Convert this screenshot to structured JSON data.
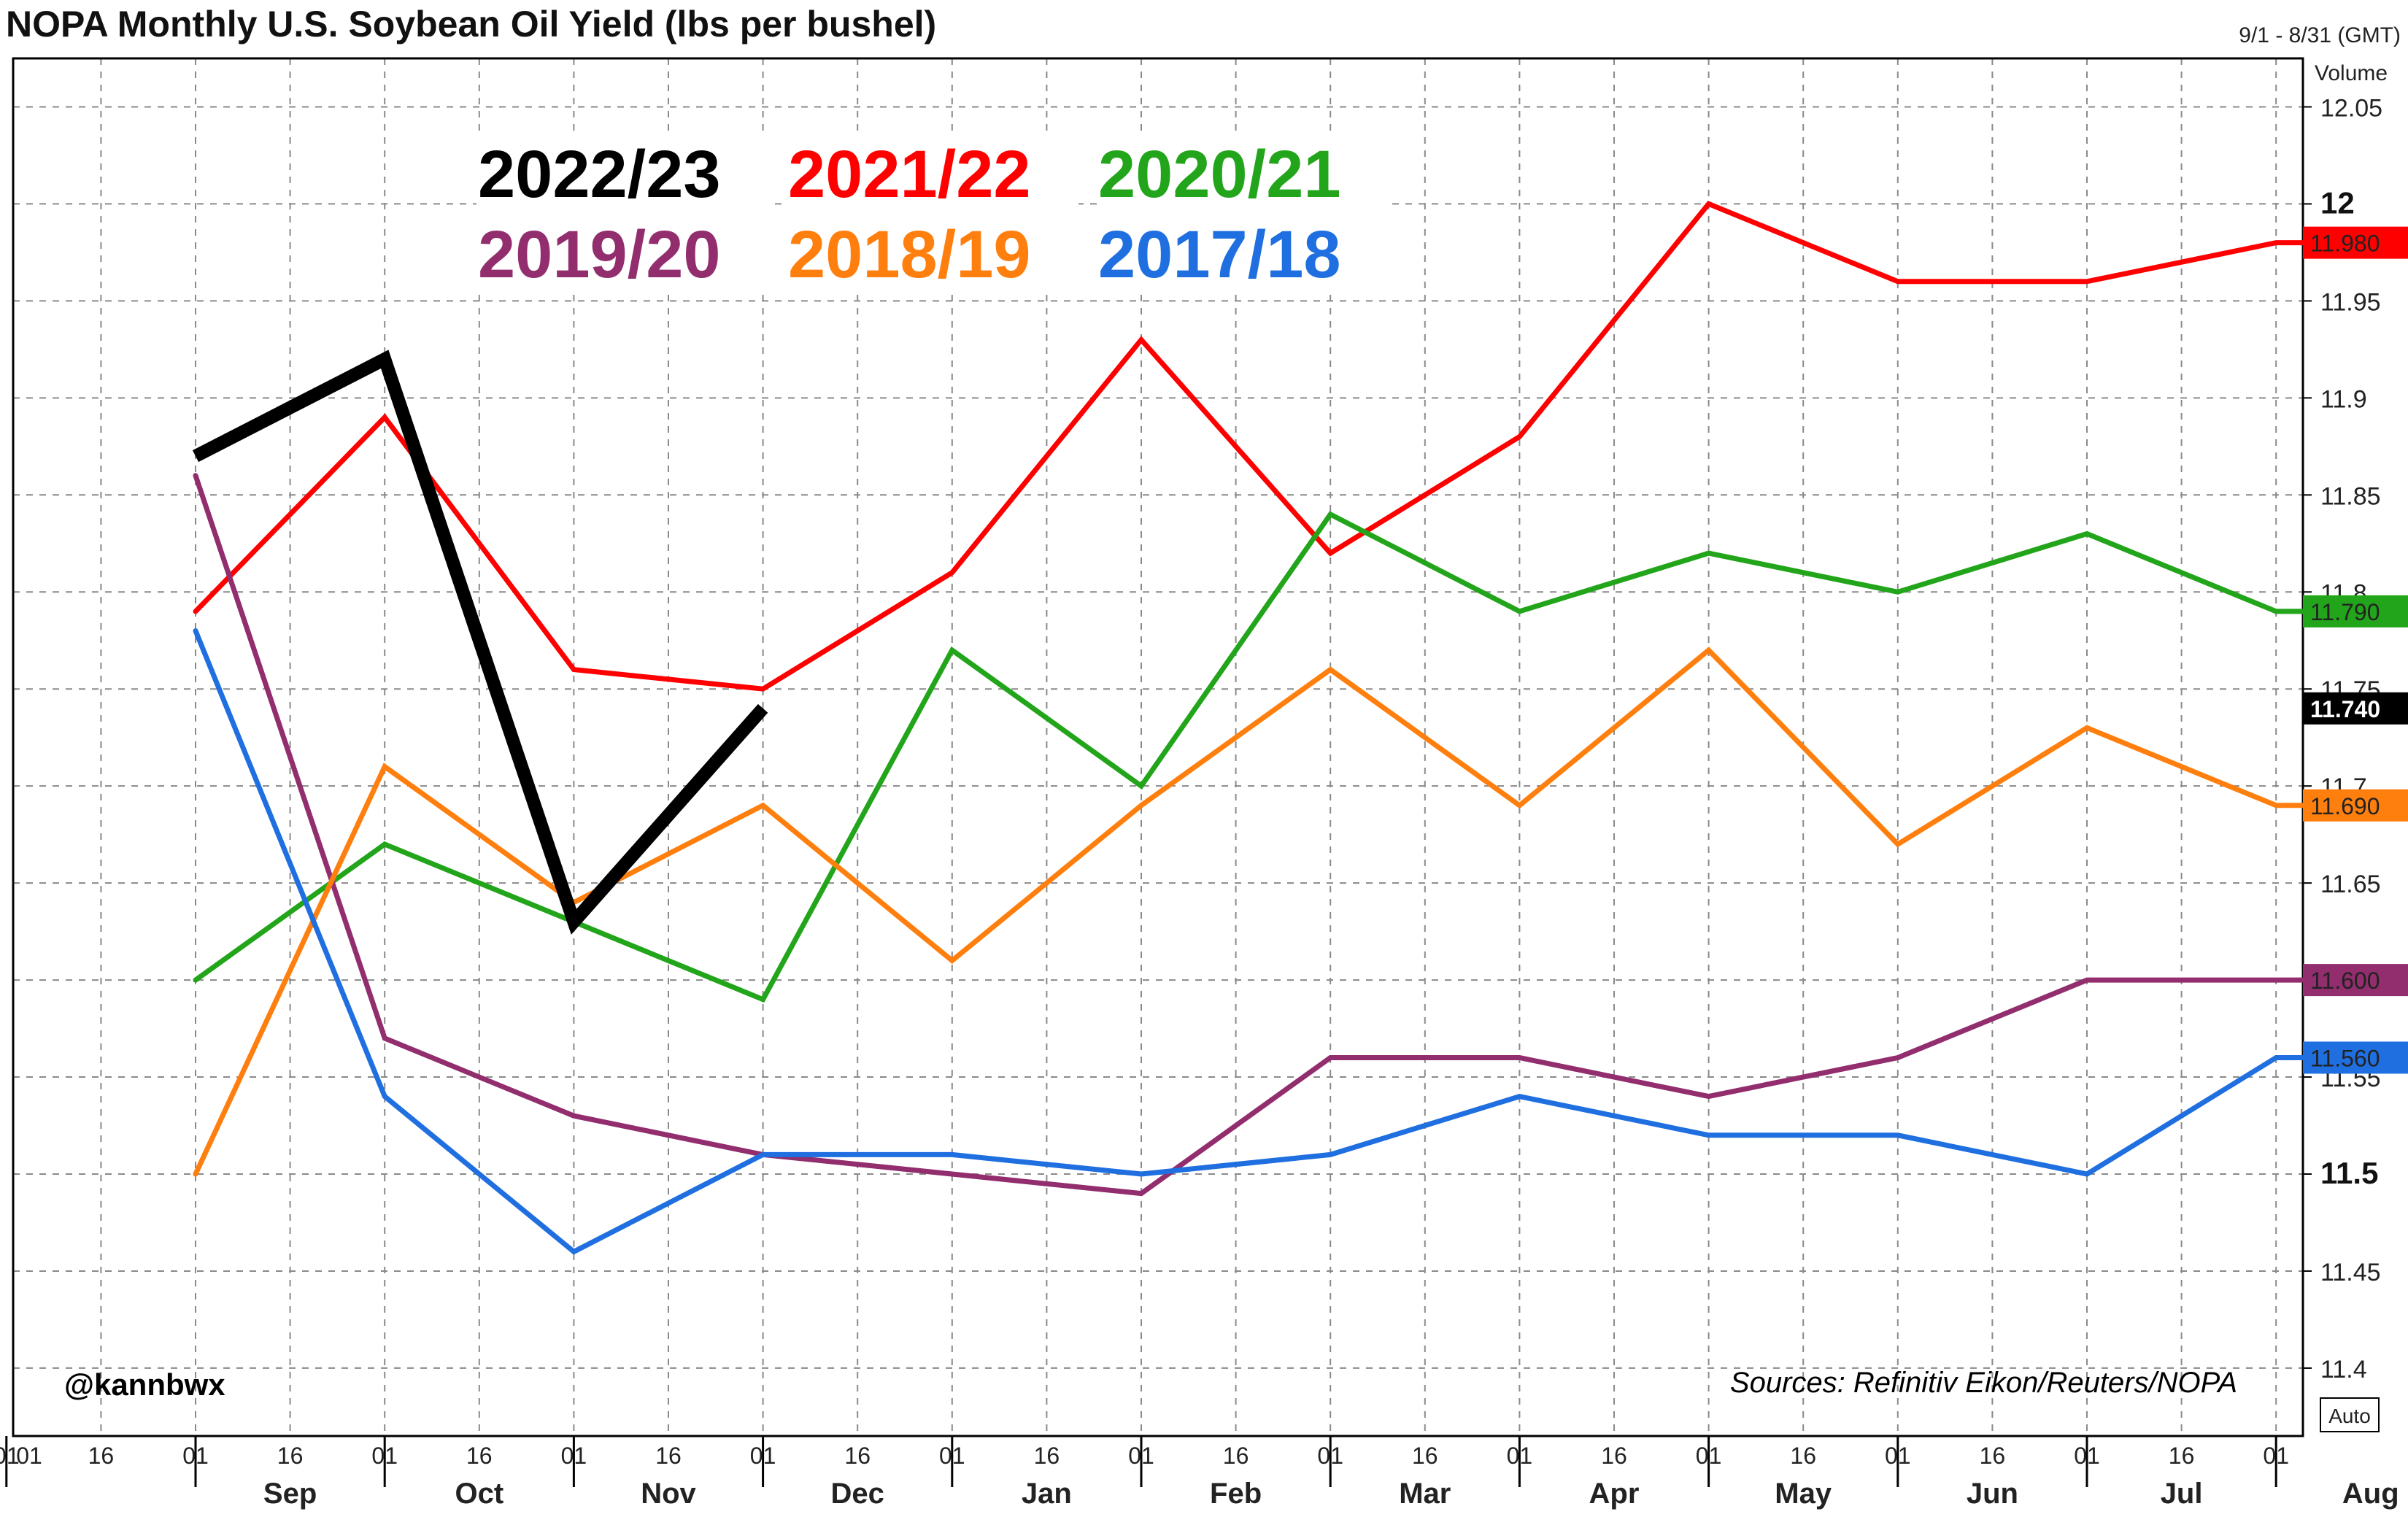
{
  "header": {
    "title": "NOPA Monthly U.S. Soybean Oil Yield (lbs per bushel)",
    "date_range": "9/1 - 8/31 (GMT)",
    "volume_label": "Volume"
  },
  "annotations": {
    "handle": "@kannbwx",
    "source": "Sources: Refinitiv Eikon/Reuters/NOPA",
    "auto_button": "Auto"
  },
  "chart_data": {
    "type": "line",
    "title": "NOPA Monthly U.S. Soybean Oil Yield (lbs per bushel)",
    "xlabel": "",
    "ylabel": "",
    "ylim": [
      11.365,
      12.075
    ],
    "grid": true,
    "legend_position": "top-left",
    "y_ticks": [
      {
        "value": 11.4,
        "label": "11.4",
        "bold": false
      },
      {
        "value": 11.45,
        "label": "11.45",
        "bold": false
      },
      {
        "value": 11.5,
        "label": "11.5",
        "bold": true
      },
      {
        "value": 11.55,
        "label": "11.55",
        "bold": false
      },
      {
        "value": 11.6,
        "label": "11.6",
        "bold": false
      },
      {
        "value": 11.65,
        "label": "11.65",
        "bold": false
      },
      {
        "value": 11.7,
        "label": "11.7",
        "bold": false
      },
      {
        "value": 11.75,
        "label": "11.75",
        "bold": false
      },
      {
        "value": 11.8,
        "label": "11.8",
        "bold": false
      },
      {
        "value": 11.85,
        "label": "11.85",
        "bold": false
      },
      {
        "value": 11.9,
        "label": "11.9",
        "bold": false
      },
      {
        "value": 11.95,
        "label": "11.95",
        "bold": false
      },
      {
        "value": 12.0,
        "label": "12",
        "bold": true
      },
      {
        "value": 12.05,
        "label": "12.05",
        "bold": false
      }
    ],
    "months": [
      "Sep",
      "Oct",
      "Nov",
      "Dec",
      "Jan",
      "Feb",
      "Mar",
      "Apr",
      "May",
      "Jun",
      "Jul",
      "Aug"
    ],
    "day_labels": [
      "01",
      "16"
    ],
    "series": [
      {
        "name": "2022/23",
        "color": "#000000",
        "width": 18,
        "values": [
          11.87,
          11.92,
          11.63,
          11.74
        ]
      },
      {
        "name": "2021/22",
        "color": "#ff0000",
        "width": 7,
        "values": [
          11.79,
          11.89,
          11.76,
          11.75,
          11.81,
          11.93,
          11.82,
          11.88,
          12.0,
          11.96,
          11.96,
          11.98
        ],
        "last_tag": "11.980"
      },
      {
        "name": "2020/21",
        "color": "#22a51a",
        "width": 7,
        "values": [
          11.6,
          11.67,
          11.63,
          11.59,
          11.77,
          11.7,
          11.84,
          11.79,
          11.82,
          11.8,
          11.83,
          11.79
        ],
        "last_tag": "11.790"
      },
      {
        "name": "2019/20",
        "color": "#922d6e",
        "width": 7,
        "values": [
          11.86,
          11.57,
          11.53,
          11.51,
          11.5,
          11.49,
          11.56,
          11.56,
          11.54,
          11.56,
          11.6,
          11.6
        ],
        "last_tag": "11.600"
      },
      {
        "name": "2018/19",
        "color": "#ff7f0e",
        "width": 7,
        "values": [
          11.5,
          11.71,
          11.64,
          11.69,
          11.61,
          11.69,
          11.76,
          11.69,
          11.77,
          11.67,
          11.73,
          11.69
        ],
        "last_tag": "11.690"
      },
      {
        "name": "2017/18",
        "color": "#1f6fe0",
        "width": 7,
        "values": [
          11.78,
          11.54,
          11.46,
          11.51,
          11.51,
          11.5,
          11.51,
          11.54,
          11.52,
          11.52,
          11.5,
          11.56
        ],
        "last_tag": "11.560"
      }
    ],
    "extra_tags": [
      {
        "value": 11.74,
        "label": "11.740",
        "color": "#000000"
      }
    ]
  }
}
